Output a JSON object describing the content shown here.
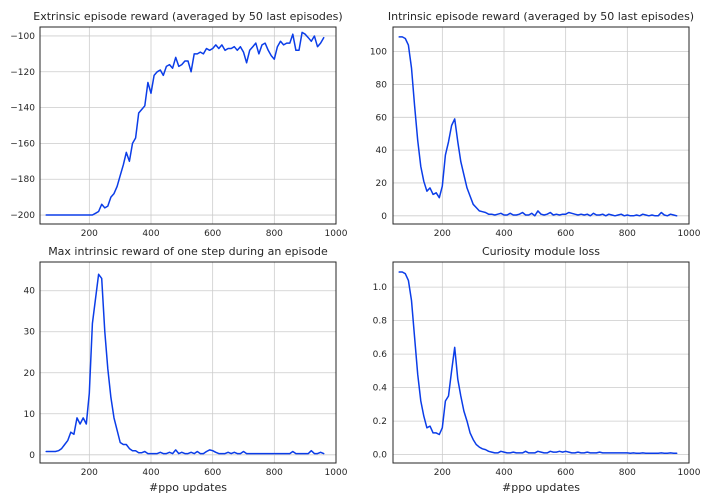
{
  "figure": {
    "line_color": "#0b3de8",
    "grid_color": "#cccccc"
  },
  "chart_data": [
    {
      "type": "line",
      "title": "Extrinsic episode reward (averaged by 50 last episodes)",
      "xlabel": "",
      "ylabel": "",
      "xlim": [
        40,
        1000
      ],
      "ylim": [
        -205,
        -95
      ],
      "xticks": [
        200,
        400,
        600,
        800,
        1000
      ],
      "yticks": [
        -200,
        -180,
        -160,
        -140,
        -120,
        -100
      ],
      "grid": true,
      "series": [
        {
          "x": [
            60,
            70,
            80,
            90,
            100,
            110,
            120,
            130,
            140,
            150,
            160,
            170,
            180,
            190,
            200,
            210,
            220,
            230,
            240,
            250,
            260,
            270,
            280,
            290,
            300,
            310,
            320,
            330,
            340,
            350,
            360,
            370,
            380,
            390,
            400,
            410,
            420,
            430,
            440,
            450,
            460,
            470,
            480,
            490,
            500,
            510,
            520,
            530,
            540,
            550,
            560,
            570,
            580,
            590,
            600,
            610,
            620,
            630,
            640,
            650,
            660,
            670,
            680,
            690,
            700,
            710,
            720,
            730,
            740,
            750,
            760,
            770,
            780,
            790,
            800,
            810,
            820,
            830,
            840,
            850,
            860,
            870,
            880,
            890,
            900,
            910,
            920,
            930,
            940,
            950,
            960
          ],
          "y": [
            -200,
            -200,
            -200,
            -200,
            -200,
            -200,
            -200,
            -200,
            -200,
            -200,
            -200,
            -200,
            -200,
            -200,
            -200,
            -200,
            -199,
            -198,
            -194,
            -196,
            -195,
            -190,
            -188,
            -184,
            -178,
            -172,
            -165,
            -170,
            -160,
            -157,
            -143,
            -141,
            -139,
            -126,
            -132,
            -122,
            -120,
            -119,
            -122,
            -117,
            -116,
            -118,
            -112,
            -117,
            -116,
            -114,
            -114,
            -120,
            -110,
            -110,
            -109,
            -110,
            -107,
            -108,
            -107,
            -105,
            -107,
            -105,
            -108,
            -107,
            -107,
            -106,
            -108,
            -106,
            -109,
            -115,
            -108,
            -106,
            -104,
            -110,
            -105,
            -104,
            -108,
            -111,
            -113,
            -106,
            -103,
            -105,
            -104,
            -104,
            -99,
            -108,
            -108,
            -98,
            -99,
            -101,
            -103,
            -100,
            -106,
            -104,
            -101
          ]
        }
      ]
    },
    {
      "type": "line",
      "title": "Intrinsic episode reward (averaged by 50 last episodes)",
      "xlabel": "",
      "ylabel": "",
      "xlim": [
        40,
        1000
      ],
      "ylim": [
        -5,
        115
      ],
      "xticks": [
        200,
        400,
        600,
        800,
        1000
      ],
      "yticks": [
        0,
        20,
        40,
        60,
        80,
        100
      ],
      "grid": true,
      "series": [
        {
          "x": [
            60,
            70,
            80,
            90,
            100,
            110,
            120,
            130,
            140,
            150,
            160,
            170,
            180,
            190,
            200,
            210,
            220,
            230,
            240,
            250,
            260,
            270,
            280,
            290,
            300,
            310,
            320,
            330,
            340,
            350,
            360,
            370,
            380,
            390,
            400,
            410,
            420,
            430,
            440,
            450,
            460,
            470,
            480,
            490,
            500,
            510,
            520,
            530,
            540,
            550,
            560,
            570,
            580,
            590,
            600,
            610,
            620,
            630,
            640,
            650,
            660,
            670,
            680,
            690,
            700,
            710,
            720,
            730,
            740,
            750,
            760,
            770,
            780,
            790,
            800,
            810,
            820,
            830,
            840,
            850,
            860,
            870,
            880,
            890,
            900,
            910,
            920,
            930,
            940,
            950,
            960
          ],
          "y": [
            109,
            109,
            108,
            104,
            90,
            67,
            46,
            30,
            21,
            15,
            17,
            13,
            14,
            11,
            18,
            37,
            45,
            55,
            59,
            45,
            33,
            25,
            17,
            12,
            7,
            5,
            3,
            2.5,
            2,
            1,
            1,
            0.5,
            1,
            1.5,
            0.5,
            0.5,
            1.5,
            0.5,
            0.5,
            1,
            2,
            0.5,
            0.5,
            1.5,
            0,
            3,
            1,
            0.5,
            1,
            2,
            0.5,
            1,
            0.5,
            1,
            1,
            2,
            1.5,
            1,
            0.5,
            1,
            0.5,
            1,
            0,
            1.5,
            0.5,
            0.5,
            1,
            0,
            1,
            0.5,
            0,
            0.5,
            1,
            0,
            0.5,
            0,
            0,
            0.5,
            0,
            1,
            0.5,
            0,
            0.5,
            0,
            0,
            2,
            0.5,
            0,
            1,
            0.5,
            0
          ]
        }
      ]
    },
    {
      "type": "line",
      "title": "Max intrinsic reward of one step during an episode",
      "xlabel": "#ppo updates",
      "ylabel": "",
      "xlim": [
        40,
        1000
      ],
      "ylim": [
        -2,
        47
      ],
      "xticks": [
        200,
        400,
        600,
        800,
        1000
      ],
      "yticks": [
        0,
        10,
        20,
        30,
        40
      ],
      "grid": true,
      "series": [
        {
          "x": [
            60,
            70,
            80,
            90,
            100,
            110,
            120,
            130,
            140,
            150,
            160,
            170,
            180,
            190,
            200,
            210,
            220,
            230,
            240,
            250,
            260,
            270,
            280,
            290,
            300,
            310,
            320,
            330,
            340,
            350,
            360,
            370,
            380,
            390,
            400,
            410,
            420,
            430,
            440,
            450,
            460,
            470,
            480,
            490,
            500,
            510,
            520,
            530,
            540,
            550,
            560,
            570,
            580,
            590,
            600,
            610,
            620,
            630,
            640,
            650,
            660,
            670,
            680,
            690,
            700,
            710,
            720,
            730,
            740,
            750,
            760,
            770,
            780,
            790,
            800,
            810,
            820,
            830,
            840,
            850,
            860,
            870,
            880,
            890,
            900,
            910,
            920,
            930,
            940,
            950,
            960
          ],
          "y": [
            0.8,
            0.8,
            0.8,
            0.8,
            1,
            1.5,
            2.5,
            3.5,
            5.5,
            5,
            9,
            7.5,
            9,
            7.5,
            15,
            32,
            38,
            44,
            43,
            30,
            21,
            14,
            9,
            6,
            3,
            2.5,
            2.5,
            1.5,
            1,
            1,
            0.5,
            0.5,
            0.8,
            0.3,
            0.3,
            0.3,
            0.3,
            0.6,
            0.3,
            0.3,
            0.6,
            0.3,
            1.2,
            0.3,
            0.6,
            0.3,
            0.3,
            0.6,
            0.3,
            0.8,
            0.3,
            0.3,
            0.8,
            1.2,
            1,
            0.6,
            0.3,
            0.3,
            0.3,
            0.6,
            0.3,
            0.6,
            0.3,
            0.3,
            0.8,
            0.3,
            0.3,
            0.3,
            0.3,
            0.3,
            0.3,
            0.3,
            0.3,
            0.3,
            0.3,
            0.3,
            0.3,
            0.3,
            0.3,
            0.3,
            0.8,
            0.3,
            0.3,
            0.3,
            0.3,
            0.3,
            1,
            0.3,
            0.3,
            0.6,
            0.3
          ]
        }
      ]
    },
    {
      "type": "line",
      "title": "Curiosity module loss",
      "xlabel": "#ppo updates",
      "ylabel": "",
      "xlim": [
        40,
        1000
      ],
      "ylim": [
        -0.05,
        1.15
      ],
      "xticks": [
        200,
        400,
        600,
        800,
        1000
      ],
      "yticks": [
        0.0,
        0.2,
        0.4,
        0.6,
        0.8,
        1.0
      ],
      "grid": true,
      "series": [
        {
          "x": [
            60,
            70,
            80,
            90,
            100,
            110,
            120,
            130,
            140,
            150,
            160,
            170,
            180,
            190,
            200,
            210,
            220,
            230,
            240,
            250,
            260,
            270,
            280,
            290,
            300,
            310,
            320,
            330,
            340,
            350,
            360,
            370,
            380,
            390,
            400,
            410,
            420,
            430,
            440,
            450,
            460,
            470,
            480,
            490,
            500,
            510,
            520,
            530,
            540,
            550,
            560,
            570,
            580,
            590,
            600,
            610,
            620,
            630,
            640,
            650,
            660,
            670,
            680,
            690,
            700,
            710,
            720,
            730,
            740,
            750,
            760,
            770,
            780,
            790,
            800,
            810,
            820,
            830,
            840,
            850,
            860,
            870,
            880,
            890,
            900,
            910,
            920,
            930,
            940,
            950,
            960
          ],
          "y": [
            1.09,
            1.09,
            1.08,
            1.04,
            0.92,
            0.7,
            0.48,
            0.32,
            0.23,
            0.16,
            0.17,
            0.13,
            0.13,
            0.12,
            0.16,
            0.32,
            0.35,
            0.5,
            0.64,
            0.45,
            0.35,
            0.26,
            0.2,
            0.13,
            0.09,
            0.06,
            0.045,
            0.035,
            0.03,
            0.02,
            0.015,
            0.01,
            0.01,
            0.02,
            0.015,
            0.01,
            0.01,
            0.015,
            0.01,
            0.01,
            0.01,
            0.02,
            0.01,
            0.01,
            0.01,
            0.02,
            0.015,
            0.01,
            0.01,
            0.02,
            0.015,
            0.015,
            0.02,
            0.015,
            0.02,
            0.015,
            0.01,
            0.01,
            0.015,
            0.01,
            0.01,
            0.015,
            0.01,
            0.01,
            0.01,
            0.015,
            0.01,
            0.01,
            0.01,
            0.01,
            0.01,
            0.01,
            0.01,
            0.01,
            0.01,
            0.008,
            0.01,
            0.008,
            0.008,
            0.01,
            0.008,
            0.008,
            0.008,
            0.008,
            0.008,
            0.01,
            0.008,
            0.008,
            0.01,
            0.008,
            0.008
          ]
        }
      ]
    }
  ]
}
